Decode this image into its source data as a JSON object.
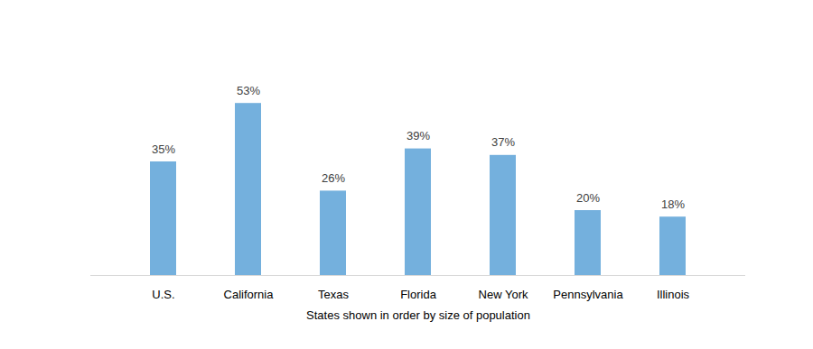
{
  "chart_data": {
    "type": "bar",
    "x_label": "States shown in order by size of population",
    "categories": [
      "U.S.",
      "California",
      "Texas",
      "Florida",
      "New York",
      "Pennsylvania",
      "Illinois"
    ],
    "values": [
      35,
      53,
      26,
      39,
      37,
      20,
      18
    ],
    "value_labels": [
      "35%",
      "53%",
      "26%",
      "39%",
      "37%",
      "20%",
      "18%"
    ],
    "data_labels": true,
    "color": "#74b0dd",
    "ylim": [
      0,
      60
    ],
    "tick_labels": "x",
    "grid": false
  }
}
